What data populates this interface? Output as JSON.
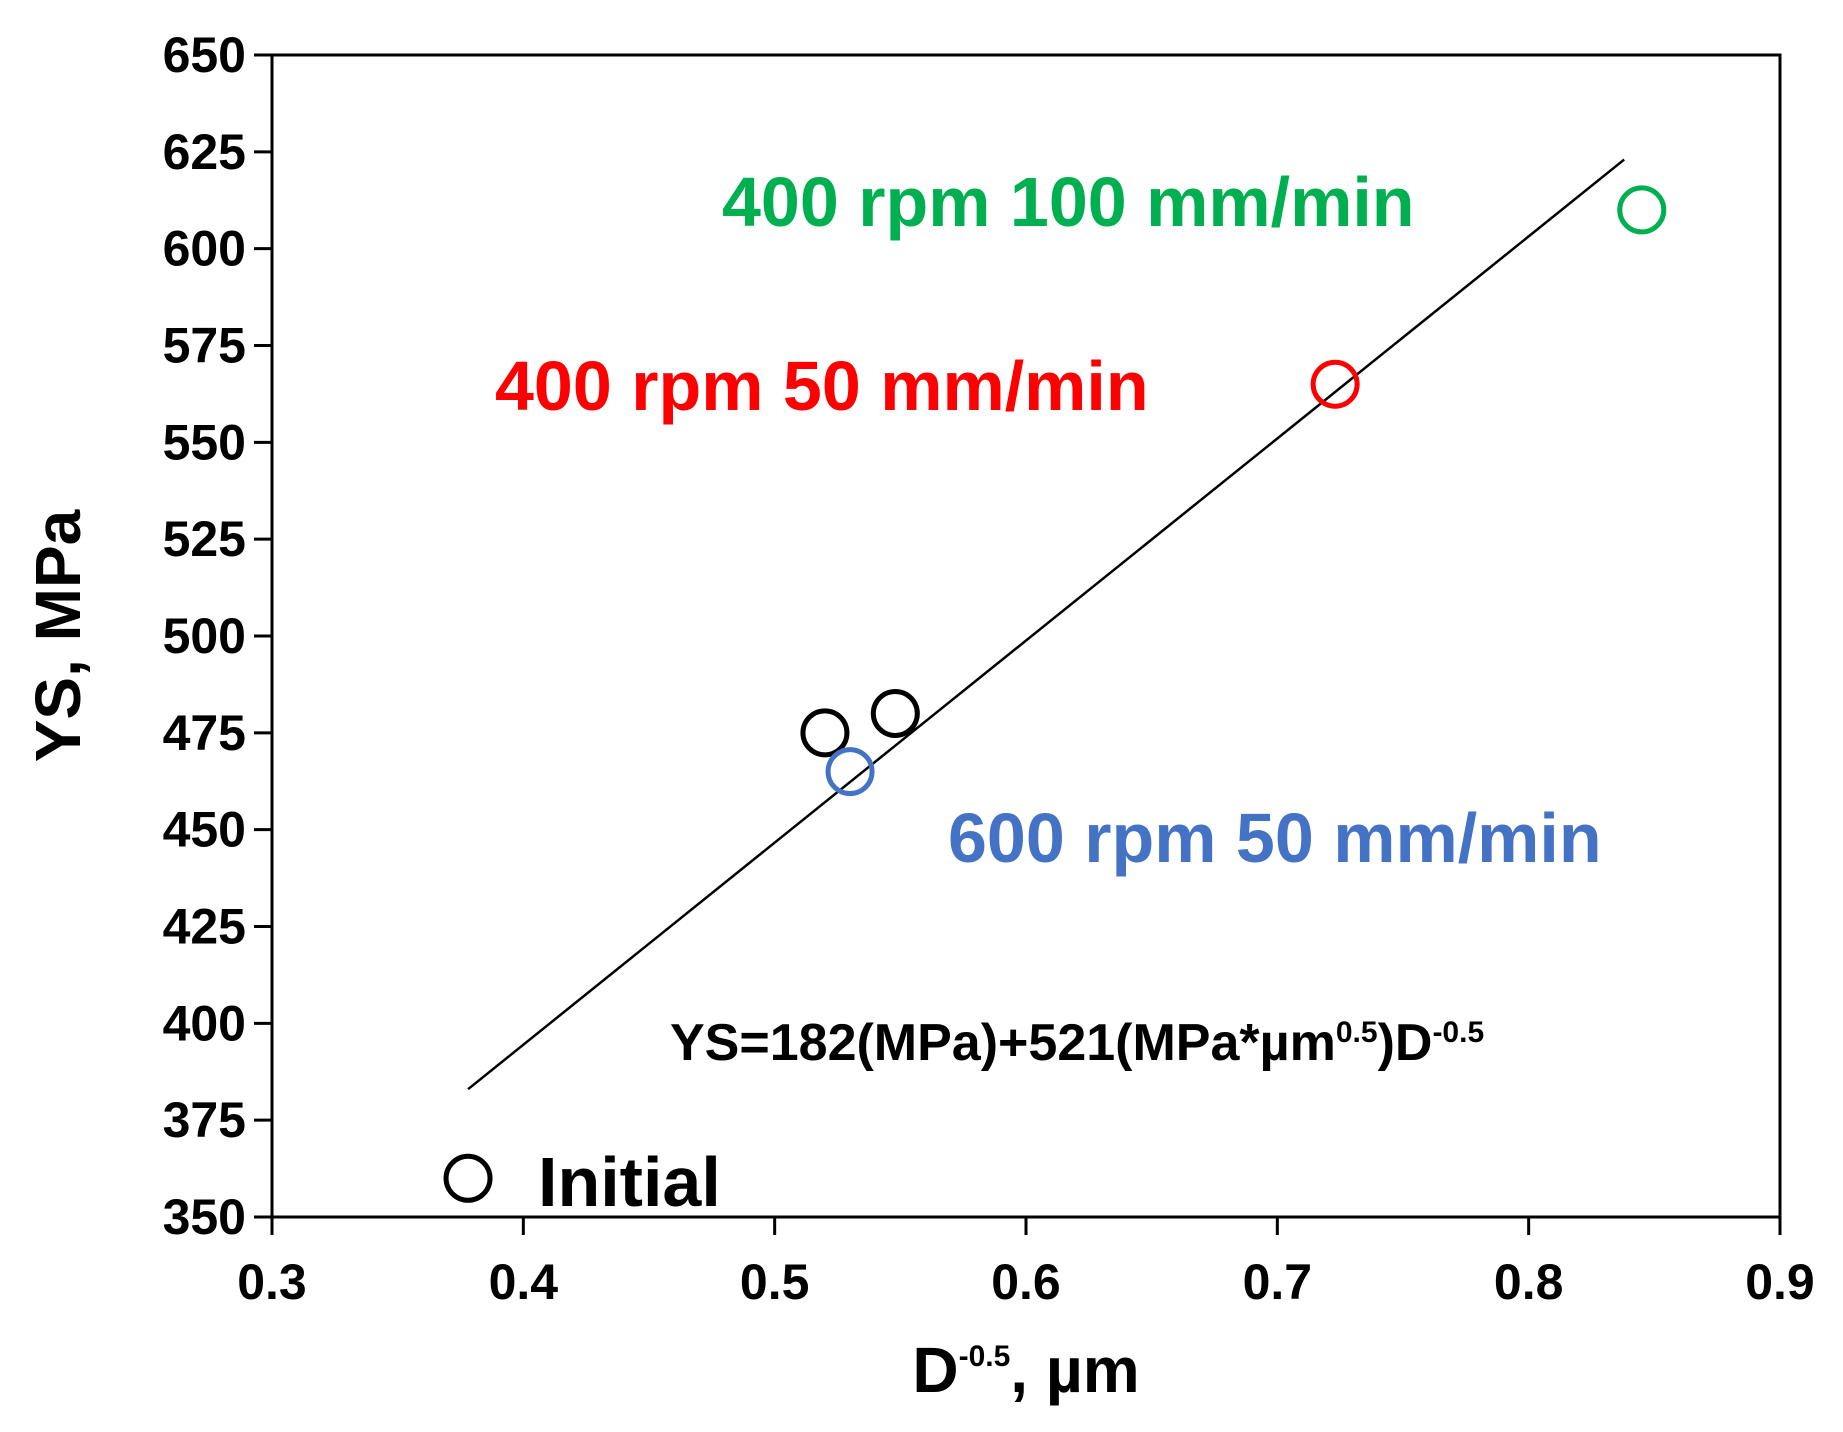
{
  "chart_data": {
    "type": "scatter",
    "xlabel": {
      "main": "D",
      "sup": "-0.5",
      "rest": ", µm"
    },
    "ylabel": "YS, MPa",
    "xlim": [
      0.3,
      0.9
    ],
    "ylim": [
      350,
      650
    ],
    "x_ticks": [
      0.3,
      0.4,
      0.5,
      0.6,
      0.7,
      0.8,
      0.9
    ],
    "x_tick_labels": [
      "0.3",
      "0.4",
      "0.5",
      "0.6",
      "0.7",
      "0.8",
      "0.9"
    ],
    "y_ticks": [
      350,
      375,
      400,
      425,
      450,
      475,
      500,
      525,
      550,
      575,
      600,
      625,
      650
    ],
    "y_tick_labels": [
      "350",
      "375",
      "400",
      "425",
      "450",
      "475",
      "500",
      "525",
      "550",
      "575",
      "600",
      "625",
      "650"
    ],
    "points": [
      {
        "x": 0.378,
        "y": 360,
        "color": "#000000",
        "label": "Initial"
      },
      {
        "x": 0.52,
        "y": 475,
        "color": "#000000",
        "label": ""
      },
      {
        "x": 0.548,
        "y": 480,
        "color": "#000000",
        "label": ""
      },
      {
        "x": 0.53,
        "y": 465,
        "color": "#4472C4",
        "label": "600 rpm 50 mm/min"
      },
      {
        "x": 0.723,
        "y": 565,
        "color": "#FF0000",
        "label": "400 rpm 50 mm/min"
      },
      {
        "x": 0.845,
        "y": 610,
        "color": "#00B050",
        "label": "400 rpm 100 mm/min"
      }
    ],
    "fit_line": {
      "x": [
        0.378,
        0.838
      ],
      "y": [
        383,
        623
      ]
    },
    "equation": {
      "p1": "YS=182(MPa)+521(MPa*µm",
      "s1": "0.5",
      "p2": ")D",
      "s2": "-0.5"
    },
    "grid": false,
    "legend": "none"
  }
}
